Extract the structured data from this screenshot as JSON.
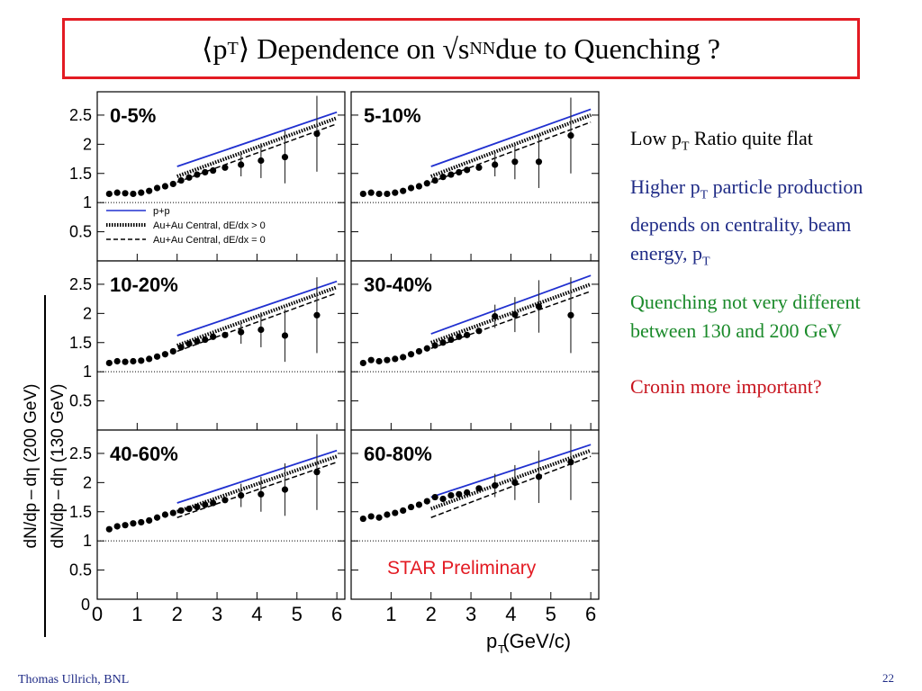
{
  "slide": {
    "title": {
      "pre": "⟨p",
      "sub1": "T",
      "mid": "⟩ Dependence on √s",
      "sub2": "NN",
      "post": " due to Quenching ?"
    },
    "footer_left": "Thomas Ullrich, BNL",
    "page_number": "22"
  },
  "notes": [
    {
      "pre": "Low p",
      "sub": "T",
      "post": " Ratio  quite flat",
      "color": "#000000"
    },
    {
      "pre": "Higher p",
      "sub": "T",
      "post": " particle production depends on centrality, beam energy, p",
      "sub2": "T",
      "color": "#1f2b86"
    },
    {
      "pre": "Quenching not very different between 130 and 200 GeV",
      "color": "#1a8a2a"
    },
    {
      "pre": "Cronin more important?",
      "color": "#c8141e"
    }
  ],
  "figure": {
    "ylabel_top": "dN/dp – dη (200 GeV)",
    "ylabel_bottom": "dN/dp – dη (130 GeV)",
    "xlabel": "p  (GeV/c)",
    "xlabel_sub": "T",
    "ytick_labels": [
      "0.5",
      "1",
      "1.5",
      "2",
      "2.5"
    ],
    "ytick_zero": "0",
    "xtick_labels": [
      "0",
      "1",
      "2",
      "3",
      "4",
      "5",
      "6"
    ],
    "legend": [
      {
        "label": "p+p",
        "style": "solid",
        "color": "#2030d0"
      },
      {
        "label": "Au+Au Central, dE/dx > 0",
        "style": "dotted",
        "color": "#000000"
      },
      {
        "label": "Au+Au Central, dE/dx = 0",
        "style": "dashed",
        "color": "#000000"
      }
    ],
    "watermark": "STAR Preliminary",
    "watermark_color": "#e31b23"
  },
  "chart_data": {
    "type": "scatter",
    "xlabel": "p_T (GeV/c)",
    "ylabel": "dN/dp_T-dη (200 GeV) / dN/dp_T-dη (130 GeV)",
    "xlim": [
      0,
      6.2
    ],
    "ylim": [
      0,
      2.9
    ],
    "reference_line_y": 1,
    "panels": [
      {
        "label": "0-5%",
        "points": [
          [
            0.3,
            1.15
          ],
          [
            0.5,
            1.17
          ],
          [
            0.7,
            1.16
          ],
          [
            0.9,
            1.15
          ],
          [
            1.1,
            1.17
          ],
          [
            1.3,
            1.2
          ],
          [
            1.5,
            1.25
          ],
          [
            1.7,
            1.28
          ],
          [
            1.9,
            1.32
          ],
          [
            2.1,
            1.38
          ],
          [
            2.3,
            1.43
          ],
          [
            2.5,
            1.48
          ],
          [
            2.7,
            1.52
          ],
          [
            2.9,
            1.55
          ],
          [
            3.2,
            1.6
          ],
          [
            3.6,
            1.65
          ],
          [
            4.1,
            1.72
          ],
          [
            4.7,
            1.78
          ],
          [
            5.5,
            2.18
          ]
        ],
        "errors": [
          [
            3.6,
            0.2
          ],
          [
            4.1,
            0.3
          ],
          [
            4.7,
            0.45
          ],
          [
            5.5,
            0.65
          ]
        ],
        "pp": [
          [
            2,
            1.62
          ],
          [
            6,
            2.55
          ]
        ],
        "dedx_gt0": [
          [
            2,
            1.45
          ],
          [
            6,
            2.45
          ]
        ],
        "dedx_eq0": [
          [
            2,
            1.35
          ],
          [
            6,
            2.35
          ]
        ]
      },
      {
        "label": "5-10%",
        "points": [
          [
            0.3,
            1.15
          ],
          [
            0.5,
            1.17
          ],
          [
            0.7,
            1.15
          ],
          [
            0.9,
            1.15
          ],
          [
            1.1,
            1.17
          ],
          [
            1.3,
            1.2
          ],
          [
            1.5,
            1.25
          ],
          [
            1.7,
            1.28
          ],
          [
            1.9,
            1.33
          ],
          [
            2.1,
            1.38
          ],
          [
            2.3,
            1.44
          ],
          [
            2.5,
            1.48
          ],
          [
            2.7,
            1.52
          ],
          [
            2.9,
            1.56
          ],
          [
            3.2,
            1.6
          ],
          [
            3.6,
            1.65
          ],
          [
            4.1,
            1.7
          ],
          [
            4.7,
            1.7
          ],
          [
            5.5,
            2.15
          ]
        ],
        "errors": [
          [
            3.6,
            0.2
          ],
          [
            4.1,
            0.3
          ],
          [
            4.7,
            0.45
          ],
          [
            5.5,
            0.65
          ]
        ],
        "pp": [
          [
            2,
            1.62
          ],
          [
            6,
            2.6
          ]
        ],
        "dedx_gt0": [
          [
            2,
            1.45
          ],
          [
            6,
            2.5
          ]
        ],
        "dedx_eq0": [
          [
            2,
            1.35
          ],
          [
            6,
            2.38
          ]
        ]
      },
      {
        "label": "10-20%",
        "points": [
          [
            0.3,
            1.15
          ],
          [
            0.5,
            1.18
          ],
          [
            0.7,
            1.17
          ],
          [
            0.9,
            1.18
          ],
          [
            1.1,
            1.19
          ],
          [
            1.3,
            1.22
          ],
          [
            1.5,
            1.26
          ],
          [
            1.7,
            1.3
          ],
          [
            1.9,
            1.35
          ],
          [
            2.1,
            1.42
          ],
          [
            2.3,
            1.48
          ],
          [
            2.5,
            1.52
          ],
          [
            2.7,
            1.55
          ],
          [
            2.9,
            1.6
          ],
          [
            3.2,
            1.63
          ],
          [
            3.6,
            1.68
          ],
          [
            4.1,
            1.72
          ],
          [
            4.7,
            1.62
          ],
          [
            5.5,
            1.97
          ]
        ],
        "errors": [
          [
            3.6,
            0.2
          ],
          [
            4.1,
            0.3
          ],
          [
            4.7,
            0.45
          ],
          [
            5.5,
            0.65
          ]
        ],
        "pp": [
          [
            2,
            1.62
          ],
          [
            6,
            2.55
          ]
        ],
        "dedx_gt0": [
          [
            2,
            1.45
          ],
          [
            6,
            2.45
          ]
        ],
        "dedx_eq0": [
          [
            2,
            1.35
          ],
          [
            6,
            2.35
          ]
        ]
      },
      {
        "label": "30-40%",
        "points": [
          [
            0.3,
            1.15
          ],
          [
            0.5,
            1.2
          ],
          [
            0.7,
            1.18
          ],
          [
            0.9,
            1.2
          ],
          [
            1.1,
            1.22
          ],
          [
            1.3,
            1.25
          ],
          [
            1.5,
            1.3
          ],
          [
            1.7,
            1.35
          ],
          [
            1.9,
            1.4
          ],
          [
            2.1,
            1.45
          ],
          [
            2.3,
            1.5
          ],
          [
            2.5,
            1.55
          ],
          [
            2.7,
            1.6
          ],
          [
            2.9,
            1.63
          ],
          [
            3.2,
            1.7
          ],
          [
            3.6,
            1.95
          ],
          [
            4.1,
            1.98
          ],
          [
            4.7,
            2.12
          ],
          [
            5.5,
            1.97
          ]
        ],
        "errors": [
          [
            3.6,
            0.2
          ],
          [
            4.1,
            0.3
          ],
          [
            4.7,
            0.45
          ],
          [
            5.5,
            0.65
          ]
        ],
        "pp": [
          [
            2,
            1.65
          ],
          [
            6,
            2.65
          ]
        ],
        "dedx_gt0": [
          [
            2,
            1.5
          ],
          [
            6,
            2.5
          ]
        ],
        "dedx_eq0": [
          [
            2,
            1.4
          ],
          [
            6,
            2.38
          ]
        ]
      },
      {
        "label": "40-60%",
        "points": [
          [
            0.3,
            1.2
          ],
          [
            0.5,
            1.25
          ],
          [
            0.7,
            1.27
          ],
          [
            0.9,
            1.3
          ],
          [
            1.1,
            1.32
          ],
          [
            1.3,
            1.35
          ],
          [
            1.5,
            1.4
          ],
          [
            1.7,
            1.45
          ],
          [
            1.9,
            1.48
          ],
          [
            2.1,
            1.52
          ],
          [
            2.3,
            1.55
          ],
          [
            2.5,
            1.58
          ],
          [
            2.7,
            1.62
          ],
          [
            2.9,
            1.65
          ],
          [
            3.2,
            1.7
          ],
          [
            3.6,
            1.78
          ],
          [
            4.1,
            1.8
          ],
          [
            4.7,
            1.88
          ],
          [
            5.5,
            2.18
          ]
        ],
        "errors": [
          [
            3.6,
            0.2
          ],
          [
            4.1,
            0.3
          ],
          [
            4.7,
            0.45
          ],
          [
            5.5,
            0.65
          ]
        ],
        "pp": [
          [
            2,
            1.65
          ],
          [
            6,
            2.55
          ]
        ],
        "dedx_gt0": [
          [
            2,
            1.5
          ],
          [
            6,
            2.45
          ]
        ],
        "dedx_eq0": [
          [
            2,
            1.4
          ],
          [
            6,
            2.35
          ]
        ]
      },
      {
        "label": "60-80%",
        "points": [
          [
            0.3,
            1.38
          ],
          [
            0.5,
            1.42
          ],
          [
            0.7,
            1.4
          ],
          [
            0.9,
            1.45
          ],
          [
            1.1,
            1.48
          ],
          [
            1.3,
            1.52
          ],
          [
            1.5,
            1.58
          ],
          [
            1.7,
            1.62
          ],
          [
            1.9,
            1.68
          ],
          [
            2.1,
            1.75
          ],
          [
            2.3,
            1.72
          ],
          [
            2.5,
            1.78
          ],
          [
            2.7,
            1.8
          ],
          [
            2.9,
            1.83
          ],
          [
            3.2,
            1.9
          ],
          [
            3.6,
            1.95
          ],
          [
            4.1,
            2.0
          ],
          [
            4.7,
            2.1
          ],
          [
            5.5,
            2.35
          ]
        ],
        "errors": [
          [
            3.6,
            0.2
          ],
          [
            4.1,
            0.3
          ],
          [
            4.7,
            0.45
          ],
          [
            5.5,
            0.65
          ]
        ],
        "pp": [
          [
            2,
            1.75
          ],
          [
            6,
            2.65
          ]
        ],
        "dedx_gt0": [
          [
            2,
            1.55
          ],
          [
            6,
            2.55
          ]
        ],
        "dedx_eq0": [
          [
            2,
            1.4
          ],
          [
            6,
            2.45
          ]
        ]
      }
    ]
  }
}
